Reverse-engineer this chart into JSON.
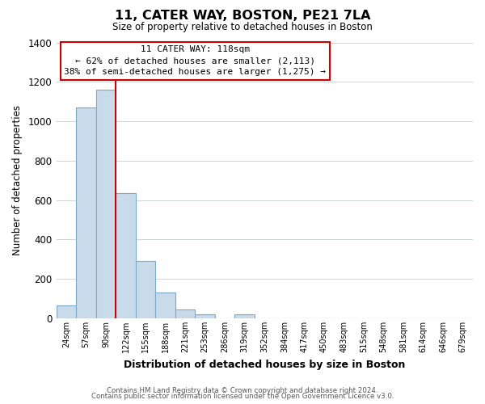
{
  "title": "11, CATER WAY, BOSTON, PE21 7LA",
  "subtitle": "Size of property relative to detached houses in Boston",
  "xlabel": "Distribution of detached houses by size in Boston",
  "ylabel": "Number of detached properties",
  "bar_labels": [
    "24sqm",
    "57sqm",
    "90sqm",
    "122sqm",
    "155sqm",
    "188sqm",
    "221sqm",
    "253sqm",
    "286sqm",
    "319sqm",
    "352sqm",
    "384sqm",
    "417sqm",
    "450sqm",
    "483sqm",
    "515sqm",
    "548sqm",
    "581sqm",
    "614sqm",
    "646sqm",
    "679sqm"
  ],
  "bar_values": [
    65,
    1070,
    1160,
    635,
    290,
    130,
    47,
    22,
    0,
    20,
    0,
    0,
    0,
    0,
    0,
    0,
    0,
    0,
    0,
    0,
    0
  ],
  "bar_color": "#c9daea",
  "bar_edge_color": "#7baac8",
  "vline_color": "#cc0000",
  "vline_x_index": 3,
  "annotation_title": "11 CATER WAY: 118sqm",
  "annotation_line1": "← 62% of detached houses are smaller (2,113)",
  "annotation_line2": "38% of semi-detached houses are larger (1,275) →",
  "annotation_box_color": "#ffffff",
  "annotation_box_edge": "#cc0000",
  "ylim": [
    0,
    1400
  ],
  "yticks": [
    0,
    200,
    400,
    600,
    800,
    1000,
    1200,
    1400
  ],
  "footer1": "Contains HM Land Registry data © Crown copyright and database right 2024.",
  "footer2": "Contains public sector information licensed under the Open Government Licence v3.0.",
  "bg_color": "#ffffff",
  "grid_color": "#c8d4e0"
}
